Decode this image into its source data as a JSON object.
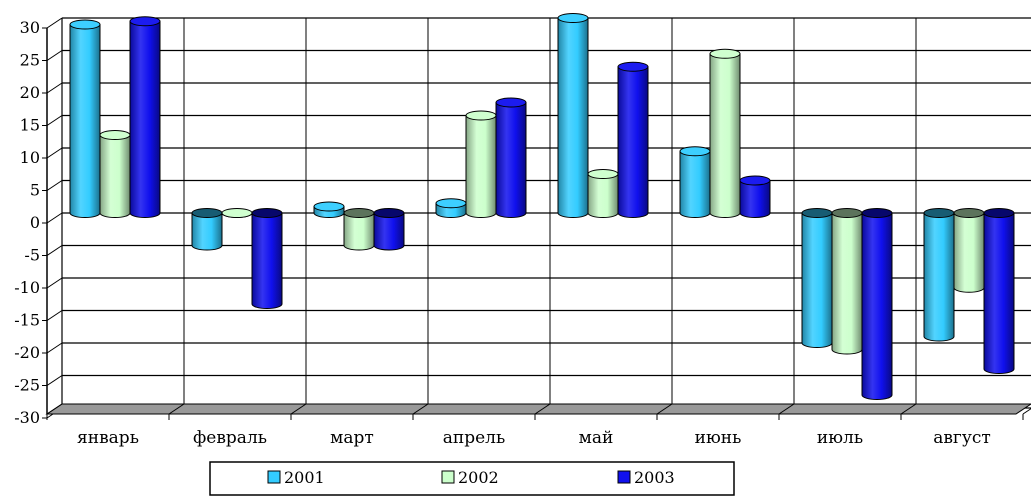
{
  "chart_data": {
    "type": "bar",
    "title": "",
    "xlabel": "",
    "ylabel": "",
    "categories": [
      "январь",
      "февраль",
      "март",
      "апрель",
      "май",
      "июнь",
      "июль",
      "август"
    ],
    "series": [
      {
        "name": "2001",
        "color": "#33ccff",
        "values": [
          29,
          -5,
          1,
          1.5,
          30,
          9.5,
          -20,
          -19
        ]
      },
      {
        "name": "2002",
        "color": "#ccffcc",
        "values": [
          12,
          0,
          -5,
          15,
          6,
          24.5,
          -21,
          -11.5
        ]
      },
      {
        "name": "2003",
        "color": "#1010ee",
        "values": [
          29.5,
          -14,
          -5,
          17,
          22.5,
          5,
          -28,
          -24
        ]
      }
    ],
    "ylim": [
      -30,
      30
    ],
    "yticks": [
      30,
      25,
      20,
      15,
      10,
      5,
      0,
      -5,
      -10,
      -15,
      -20,
      -25,
      -30
    ],
    "grid": true,
    "legend_position": "bottom",
    "style": "3d-cylinder",
    "floor_color": "#999999"
  }
}
